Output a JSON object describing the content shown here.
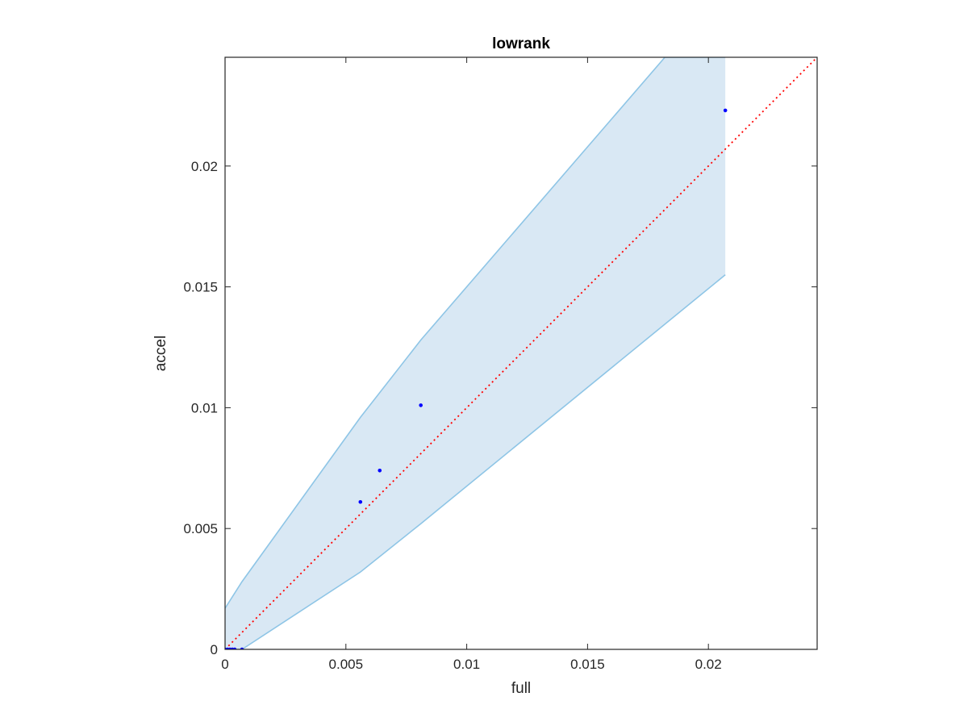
{
  "chart_data": {
    "type": "area",
    "title": "lowrank",
    "xlabel": "full",
    "ylabel": "accel",
    "xlim": [
      0,
      0.0245
    ],
    "ylim": [
      0,
      0.0245
    ],
    "grid": false,
    "xticks": [
      0,
      0.005,
      0.01,
      0.015,
      0.02
    ],
    "xtick_labels": [
      "0",
      "0.005",
      "0.01",
      "0.015",
      "0.02"
    ],
    "yticks": [
      0,
      0.005,
      0.01,
      0.015,
      0.02
    ],
    "ytick_labels": [
      "0",
      "0.005",
      "0.01",
      "0.015",
      "0.02"
    ],
    "band": {
      "upper": [
        [
          0,
          0.0017
        ],
        [
          0.0007,
          0.0028
        ],
        [
          0.0056,
          0.0096
        ],
        [
          0.0081,
          0.0128
        ],
        [
          0.0182,
          0.0245
        ],
        [
          0.0207,
          0.0245
        ]
      ],
      "lower": [
        [
          0,
          0
        ],
        [
          0.0007,
          0
        ],
        [
          0.0056,
          0.0032
        ],
        [
          0.0081,
          0.0052
        ],
        [
          0.0207,
          0.0155
        ]
      ],
      "fill_color": "#d9e8f4",
      "edge_color": "#8ec5e6"
    },
    "points": {
      "x": [
        0,
        0.0001,
        0.0002,
        0.0003,
        0.0004,
        0.0007,
        0.0056,
        0.0064,
        0.0081,
        0.0207
      ],
      "y": [
        0,
        0,
        0,
        0,
        0,
        0,
        0.0061,
        0.0074,
        0.0101,
        0.0223
      ],
      "color": "#0000ff"
    },
    "reference_line": {
      "from": [
        0,
        0
      ],
      "to": [
        0.0245,
        0.0245
      ],
      "color": "#ff0000",
      "style": "dotted"
    }
  }
}
